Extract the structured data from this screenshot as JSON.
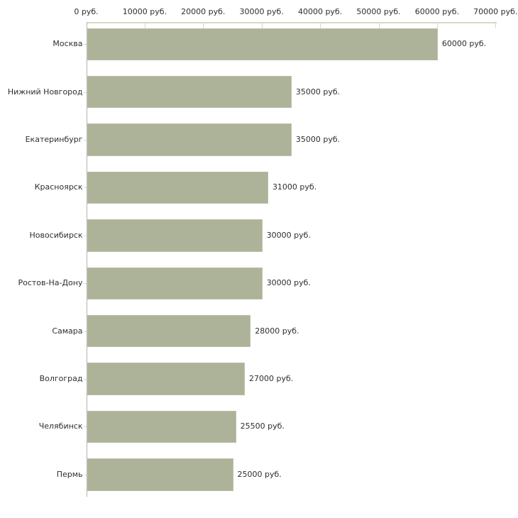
{
  "chart_data": {
    "type": "bar",
    "orientation": "horizontal",
    "title": "",
    "xlabel": "",
    "ylabel": "",
    "x_axis": {
      "position": "top",
      "min": 0,
      "max": 70000,
      "tick_step": 10000,
      "tick_values": [
        0,
        10000,
        20000,
        30000,
        40000,
        50000,
        60000,
        70000
      ],
      "tick_labels": [
        "0 руб.",
        "10000 руб.",
        "20000 руб.",
        "30000 руб.",
        "40000 руб.",
        "50000 руб.",
        "60000 руб.",
        "70000 руб."
      ]
    },
    "categories": [
      "Москва",
      "Нижний Новгород",
      "Екатеринбург",
      "Красноярск",
      "Новосибирск",
      "Ростов-На-Дону",
      "Самара",
      "Волгоград",
      "Челябинск",
      "Пермь"
    ],
    "values": [
      60000,
      35000,
      35000,
      31000,
      30000,
      30000,
      28000,
      27000,
      25500,
      25000
    ],
    "value_labels": [
      "60000 руб.",
      "35000 руб.",
      "35000 руб.",
      "31000 руб.",
      "30000 руб.",
      "30000 руб.",
      "28000 руб.",
      "27000 руб.",
      "25500 руб.",
      "25000 руб."
    ],
    "grid": false,
    "legend": false
  },
  "style": {
    "background_color": "#ffffff",
    "bar_color": "#acb398",
    "bar_border_color": "#b9bfa7",
    "value_axis_line_color": "#d9d9c1",
    "category_axis_line_color": "#b3b3b3",
    "text_color": "#2e2e2e"
  }
}
